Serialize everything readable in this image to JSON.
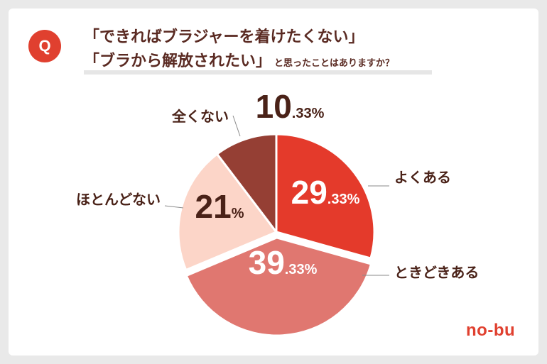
{
  "question": {
    "badge": "Q",
    "line1": "「できればブラジャーを着けたくない」",
    "line2_main": "「ブラから解放されたい」",
    "line2_suffix": "と思ったことはありますか？"
  },
  "logo": "no-bu",
  "colors": {
    "accent": "#e0402f",
    "text": "#4a2218"
  },
  "chart_data": {
    "type": "pie",
    "unit": "%",
    "slices": [
      {
        "label": "よくある",
        "value": 29.33,
        "int": "29",
        "dec": ".33%",
        "color": "#e43a2b",
        "text_color": "#ffffff"
      },
      {
        "label": "ときどきある",
        "value": 39.33,
        "int": "39",
        "dec": ".33%",
        "color": "#e07770",
        "text_color": "#ffffff",
        "exploded": true
      },
      {
        "label": "ほとんどない",
        "value": 21,
        "int": "21",
        "dec": "%",
        "color": "#fcd5c8",
        "text_color": "#4a2218"
      },
      {
        "label": "全くない",
        "value": 10.33,
        "int": "10",
        "dec": ".33%",
        "color": "#953f34",
        "text_color": "#4a2218"
      }
    ]
  }
}
